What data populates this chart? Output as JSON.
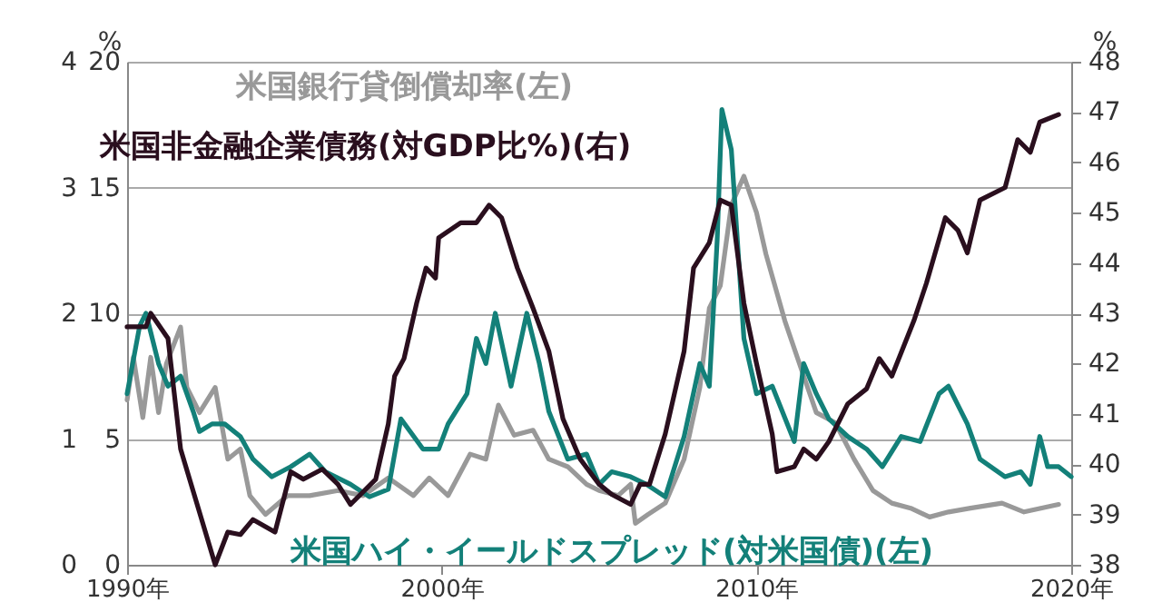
{
  "chart_data": {
    "type": "line",
    "xlim": [
      1990,
      2020
    ],
    "xticks": [
      {
        "value": 1990,
        "label": "1990年"
      },
      {
        "value": 2000,
        "label": "2000年"
      },
      {
        "value": 2010,
        "label": "2010年"
      },
      {
        "value": 2020,
        "label": "2020年"
      }
    ],
    "ylim": [
      0,
      4
    ],
    "yticks": [
      0,
      1,
      2,
      3,
      4
    ],
    "y3lim": [
      0,
      20
    ],
    "y3ticks": [
      0,
      5,
      10,
      15,
      20
    ],
    "y2lim": [
      38,
      48
    ],
    "y2ticks": [
      38,
      39,
      40,
      41,
      42,
      43,
      44,
      45,
      46,
      47,
      48
    ],
    "ylabel": "%",
    "y2label": "%",
    "grid": "y",
    "marker": "none",
    "line_style": "solid",
    "series": [
      {
        "name": "米国銀行貸倒償却率(左)",
        "color": "#999999",
        "axis": "y",
        "x": [
          1990.0,
          1990.2,
          1990.5,
          1990.75,
          1991.0,
          1991.25,
          1991.7,
          1991.9,
          1992.3,
          1992.8,
          1993.2,
          1993.6,
          1993.9,
          1994.4,
          1995.1,
          1995.8,
          1996.7,
          1997.5,
          1998.3,
          1999.1,
          1999.6,
          2000.2,
          2000.9,
          2001.4,
          2001.8,
          2002.3,
          2002.9,
          2003.4,
          2004.0,
          2004.6,
          2005.0,
          2005.6,
          2006.0,
          2006.15,
          2006.55,
          2007.1,
          2007.7,
          2008.2,
          2008.5,
          2008.85,
          2009.2,
          2009.6,
          2010.0,
          2010.3,
          2010.9,
          2011.5,
          2011.9,
          2012.5,
          2013.1,
          2013.7,
          2014.3,
          2014.9,
          2015.5,
          2016.1,
          2016.8,
          2017.8,
          2018.5,
          2019.6
        ],
        "values": [
          1.31,
          1.65,
          1.17,
          1.65,
          1.21,
          1.6,
          1.89,
          1.41,
          1.21,
          1.41,
          0.84,
          0.92,
          0.55,
          0.4,
          0.55,
          0.55,
          0.59,
          0.55,
          0.69,
          0.55,
          0.69,
          0.55,
          0.88,
          0.84,
          1.27,
          1.03,
          1.07,
          0.84,
          0.78,
          0.64,
          0.59,
          0.55,
          0.64,
          0.33,
          0.4,
          0.49,
          0.84,
          1.41,
          2.04,
          2.22,
          2.86,
          3.09,
          2.8,
          2.47,
          1.94,
          1.5,
          1.21,
          1.13,
          0.84,
          0.59,
          0.49,
          0.45,
          0.38,
          0.42,
          0.45,
          0.49,
          0.42,
          0.48
        ]
      },
      {
        "name": "米国ハイ・イールドスプレッド(対米国債)(左)",
        "color": "#138079",
        "axis": "y3",
        "x": [
          1990.0,
          1990.4,
          1990.6,
          1991.0,
          1991.3,
          1991.7,
          1992.1,
          1992.3,
          1992.7,
          1993.1,
          1993.6,
          1994.0,
          1994.6,
          1995.2,
          1995.8,
          1996.3,
          1997.1,
          1997.7,
          1998.3,
          1998.7,
          1999.4,
          1999.9,
          2000.2,
          2000.8,
          2001.1,
          2001.4,
          2001.7,
          2002.2,
          2002.7,
          2003.1,
          2003.4,
          2004.0,
          2004.6,
          2005.0,
          2005.4,
          2006.0,
          2006.5,
          2007.1,
          2007.7,
          2008.2,
          2008.5,
          2008.75,
          2008.9,
          2009.2,
          2009.6,
          2010.0,
          2010.5,
          2011.2,
          2011.5,
          2011.9,
          2012.3,
          2012.9,
          2013.5,
          2014.0,
          2014.6,
          2015.2,
          2015.8,
          2016.1,
          2016.7,
          2017.1,
          2017.9,
          2018.4,
          2018.7,
          2019.0,
          2019.25,
          2019.6,
          2020.0
        ],
        "values": [
          6.8,
          9.5,
          10.0,
          8.0,
          7.1,
          7.5,
          6.1,
          5.3,
          5.6,
          5.6,
          5.1,
          4.2,
          3.5,
          3.9,
          4.4,
          3.7,
          3.2,
          2.7,
          3.0,
          5.8,
          4.6,
          4.6,
          5.6,
          6.8,
          9.0,
          8.0,
          10.0,
          7.1,
          10.0,
          8.0,
          6.1,
          4.2,
          4.4,
          3.2,
          3.7,
          3.5,
          3.2,
          2.7,
          5.1,
          8.0,
          7.1,
          12.9,
          18.1,
          16.5,
          9.0,
          6.8,
          7.1,
          4.9,
          8.0,
          6.8,
          5.8,
          5.1,
          4.6,
          3.9,
          5.1,
          4.9,
          6.8,
          7.1,
          5.6,
          4.2,
          3.5,
          3.7,
          3.2,
          5.1,
          3.9,
          3.9,
          3.5
        ]
      },
      {
        "name": "米国非金融企業債務(対GDP比%)(右)",
        "color": "#2a0f1e",
        "axis": "y2",
        "x": [
          1990.0,
          1990.6,
          1990.75,
          1991.3,
          1991.7,
          1992.8,
          1993.2,
          1993.6,
          1994.0,
          1994.7,
          1995.2,
          1995.6,
          1996.2,
          1996.7,
          1997.1,
          1997.9,
          1998.3,
          1998.5,
          1998.8,
          1999.2,
          1999.5,
          1999.8,
          1999.9,
          2000.6,
          2001.1,
          2001.5,
          2001.9,
          2002.4,
          2002.9,
          2003.4,
          2003.85,
          2004.4,
          2005.0,
          2005.4,
          2006.0,
          2006.3,
          2006.6,
          2007.1,
          2007.7,
          2008.0,
          2008.5,
          2008.85,
          2009.2,
          2009.6,
          2010.0,
          2010.5,
          2010.65,
          2011.2,
          2011.5,
          2011.9,
          2012.3,
          2012.9,
          2013.5,
          2013.9,
          2014.3,
          2015.0,
          2015.4,
          2016.0,
          2016.4,
          2016.7,
          2017.1,
          2017.9,
          2018.3,
          2018.7,
          2019.0,
          2019.6
        ],
        "values": [
          42.73,
          42.73,
          43.0,
          42.5,
          40.3,
          38.0,
          38.65,
          38.6,
          38.9,
          38.65,
          39.85,
          39.7,
          39.9,
          39.6,
          39.2,
          39.7,
          40.8,
          41.75,
          42.1,
          43.2,
          43.9,
          43.7,
          44.5,
          44.8,
          44.8,
          45.15,
          44.9,
          43.9,
          43.1,
          42.25,
          40.9,
          40.1,
          39.6,
          39.4,
          39.2,
          39.6,
          39.6,
          40.6,
          42.25,
          43.9,
          44.4,
          45.25,
          45.15,
          43.2,
          42.0,
          40.6,
          39.85,
          39.95,
          40.3,
          40.1,
          40.45,
          41.2,
          41.5,
          42.1,
          41.75,
          42.85,
          43.6,
          44.9,
          44.65,
          44.2,
          45.25,
          45.5,
          46.45,
          46.2,
          46.8,
          46.95
        ]
      }
    ]
  }
}
